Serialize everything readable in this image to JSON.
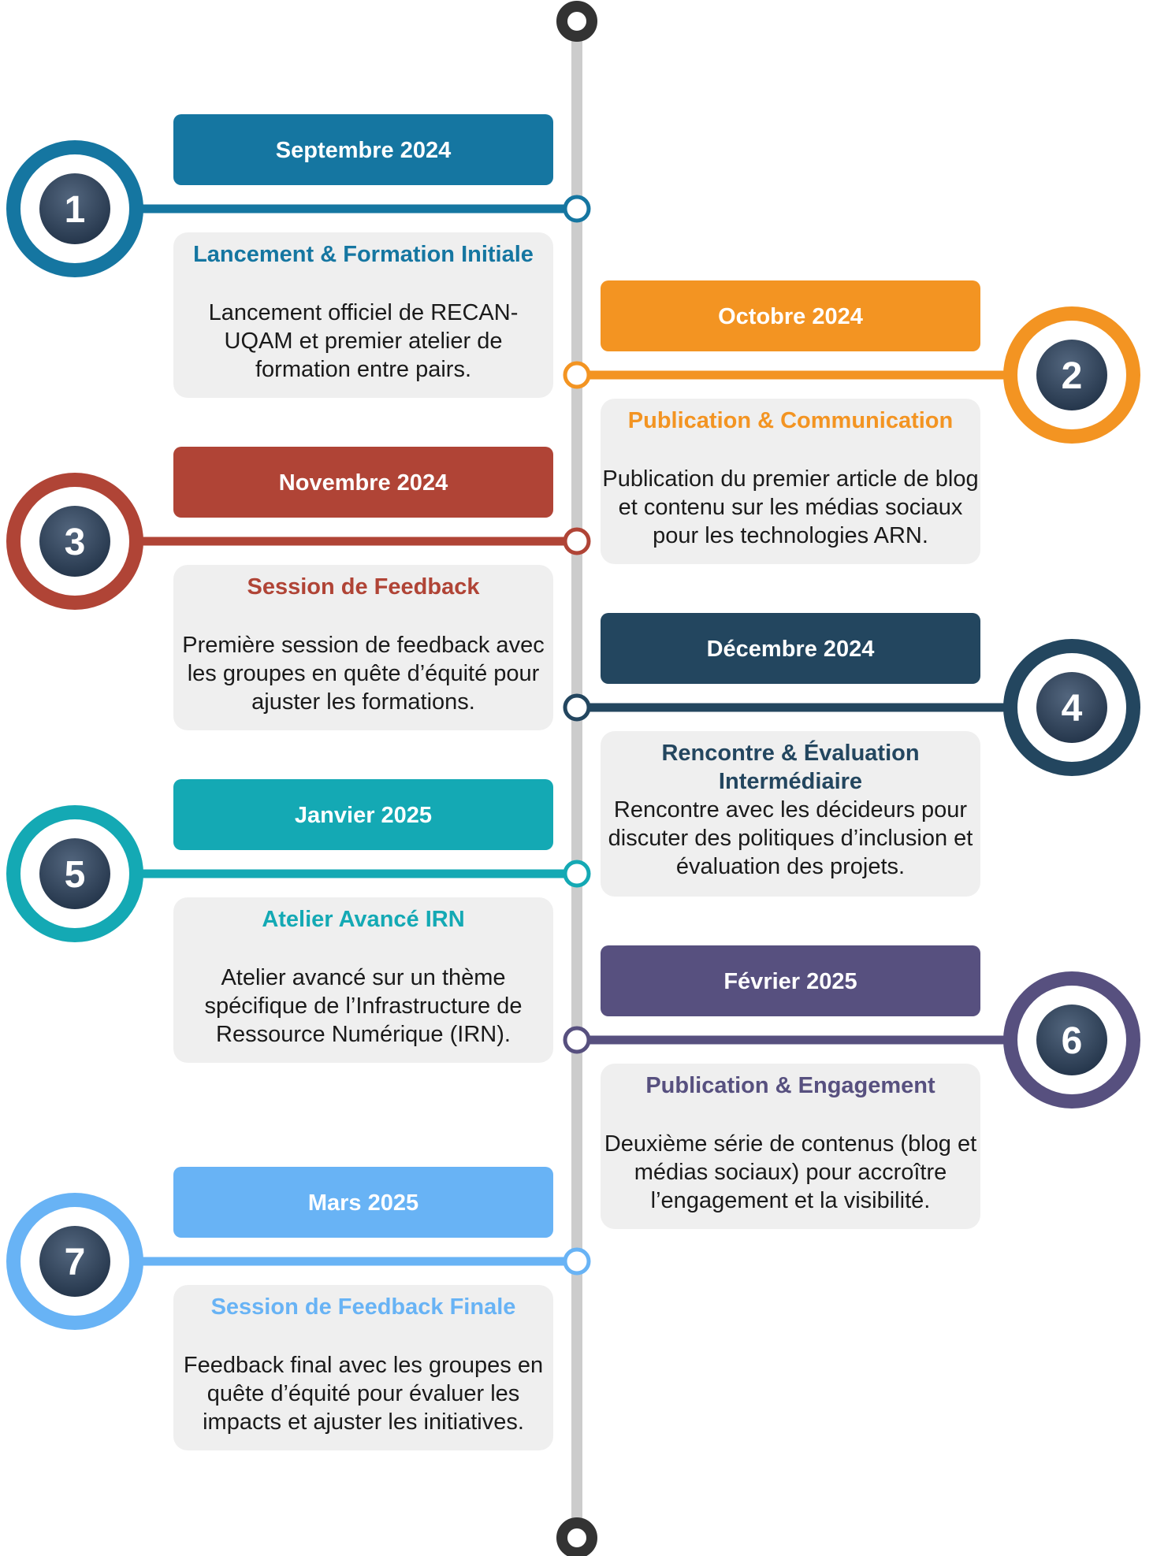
{
  "events": [
    {
      "number": "1",
      "date": "Septembre 2024",
      "title": "Lancement & Formation Initiale",
      "description": "Lancement officiel de RECAN-UQAM et premier atelier de formation entre pairs.",
      "color": "#1576A1",
      "side": "left"
    },
    {
      "number": "2",
      "date": "Octobre 2024",
      "title": "Publication & Communication",
      "description": "Publication du premier article de blog et contenu sur les médias sociaux pour les technologies ARN.",
      "color": "#F39422",
      "side": "right"
    },
    {
      "number": "3",
      "date": "Novembre 2024",
      "title": "Session de Feedback",
      "description": "Première session de feedback avec les groupes en quête d’équité pour ajuster les formations.",
      "color": "#B04436",
      "side": "left"
    },
    {
      "number": "4",
      "date": "Décembre 2024",
      "title": "Rencontre & Évaluation Intermédiaire",
      "description": "Rencontre avec les décideurs pour discuter des politiques d’inclusion et évaluation des projets.",
      "color": "#23465F",
      "side": "right"
    },
    {
      "number": "5",
      "date": "Janvier 2025",
      "title": "Atelier Avancé IRN",
      "description": "Atelier avancé sur un thème spécifique de l’Infrastructure de Ressource Numérique (IRN).",
      "color": "#14A9B4",
      "side": "left"
    },
    {
      "number": "6",
      "date": "Février 2025",
      "title": "Publication & Engagement",
      "description": "Deuxième série de contenus (blog et médias sociaux) pour accroître l’engagement et la visibilité.",
      "color": "#57507F",
      "side": "right"
    },
    {
      "number": "7",
      "date": "Mars 2025",
      "title": "Session de Feedback Finale",
      "description": "Feedback final avec les groupes en quête d’équité pour évaluer les impacts et ajuster les initiatives.",
      "color": "#68B3F5",
      "side": "left"
    }
  ],
  "colors": {
    "spine": "#CCCCCC",
    "terminal": "#333333",
    "card_bg": "#EFEFEF",
    "badge_gradient_top": "#53667E",
    "badge_gradient_bottom": "#1E2F44"
  }
}
